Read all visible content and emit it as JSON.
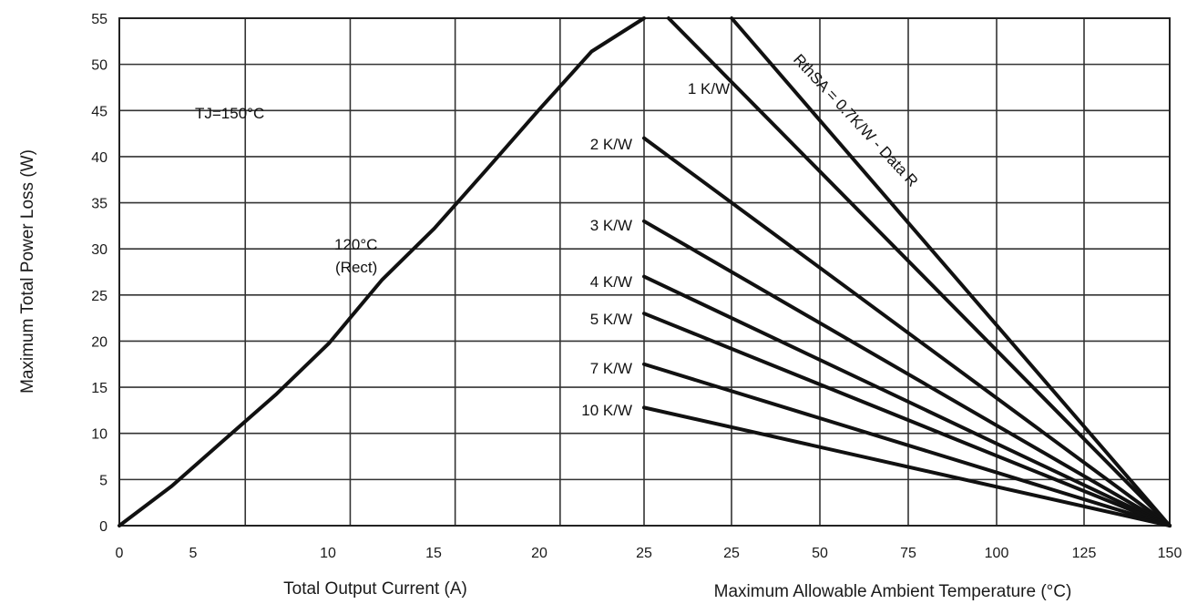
{
  "chart_data": {
    "type": "line",
    "ylabel": "Maximum Total Power Loss (W)",
    "ylim": [
      0,
      55
    ],
    "yticks": [
      "0",
      "5",
      "10",
      "15",
      "20",
      "25",
      "30",
      "35",
      "40",
      "45",
      "50",
      "55"
    ],
    "grid": true,
    "left_panel": {
      "xlabel": "Total Output Current (A)",
      "xlim": [
        0,
        25
      ],
      "xticks": [
        "0",
        "5",
        "10",
        "15",
        "20",
        "25"
      ],
      "annotations": [
        "TJ=150°C",
        "120°C",
        "(Rect)"
      ],
      "series": [
        {
          "x": [
            0,
            2.5,
            5,
            7.5,
            10,
            12.5,
            15,
            17.5,
            20,
            22.5,
            25
          ],
          "y": [
            0,
            4.3,
            9.3,
            14.3,
            19.8,
            26.6,
            32.2,
            38.6,
            45.1,
            51.4,
            55
          ]
        }
      ]
    },
    "right_panel": {
      "xlabel": "Maximum Allowable Ambient Temperature (°C)",
      "xlim": [
        0,
        150
      ],
      "xticks": [
        "25",
        "25",
        "50",
        "75",
        "100",
        "125",
        "150"
      ],
      "series": [
        {
          "label": "RthSA = 0.7K/W - Data R",
          "x": [
            25,
            150
          ],
          "y": [
            55,
            0
          ]
        },
        {
          "label": "1 K/W",
          "x": [
            7,
            150
          ],
          "y": [
            55,
            0
          ]
        },
        {
          "label": "2 K/W",
          "x": [
            0,
            150
          ],
          "y": [
            42,
            0
          ]
        },
        {
          "label": "3 K/W",
          "x": [
            0,
            150
          ],
          "y": [
            33,
            0
          ]
        },
        {
          "label": "4 K/W",
          "x": [
            0,
            150
          ],
          "y": [
            27,
            0
          ]
        },
        {
          "label": "5 K/W",
          "x": [
            0,
            150
          ],
          "y": [
            23,
            0
          ]
        },
        {
          "label": "7 K/W",
          "x": [
            0,
            150
          ],
          "y": [
            17.5,
            0
          ]
        },
        {
          "label": "10 K/W",
          "x": [
            0,
            150
          ],
          "y": [
            12.8,
            0
          ]
        }
      ]
    }
  }
}
